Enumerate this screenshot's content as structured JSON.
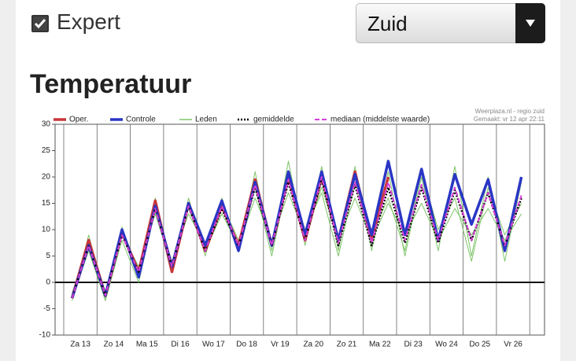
{
  "header": {
    "expert_label": "Expert",
    "expert_checked": true,
    "region": "Zuid"
  },
  "section_title": "Temperatuur",
  "chart_data": {
    "type": "line",
    "source": "Weerplaza.nl - regio zuid",
    "created": "Gemaakt: vr 12 apr 22:11",
    "categories": [
      "Za 13",
      null,
      "Zo 14",
      null,
      "Ma 15",
      null,
      "Di 16",
      null,
      "Wo 17",
      null,
      "Do 18",
      null,
      "Vr 19",
      null,
      "Za 20",
      null,
      "Zo 21",
      null,
      "Ma 22",
      null,
      "Di 23",
      null,
      "Wo 24",
      null,
      "Do 25",
      null,
      "Vr 26",
      null
    ],
    "ylim": [
      -10,
      30
    ],
    "yticks": [
      -10,
      -5,
      0,
      5,
      10,
      15,
      20,
      25,
      30
    ],
    "series": [
      {
        "name": "Oper.",
        "color": "#c9373a",
        "width": 3.5,
        "dash": "none",
        "values": [
          -3,
          8,
          -2.5,
          9.5,
          2,
          15.5,
          2,
          15,
          6,
          14.5,
          7,
          19.5,
          7,
          20,
          8,
          20,
          8,
          21,
          8,
          20,
          null,
          null,
          null,
          null,
          null,
          null,
          null,
          null
        ]
      },
      {
        "name": "Controle",
        "color": "#2a36c4",
        "width": 3.5,
        "dash": "none",
        "values": [
          -3,
          7,
          -2.5,
          10,
          1,
          14.5,
          3,
          15,
          7,
          15.5,
          6,
          19,
          7,
          21,
          9,
          21,
          8,
          20.5,
          9,
          23,
          9,
          21.5,
          8,
          20.5,
          11,
          19.5,
          6,
          20
        ]
      },
      {
        "name": "Leden",
        "color": "#7fc46a",
        "width": 1,
        "dash": "none",
        "members": [
          [
            -3.5,
            9,
            -3,
            10.5,
            1,
            16,
            2,
            16,
            5,
            16,
            6,
            21,
            6,
            23,
            7,
            22,
            6,
            22,
            6,
            21,
            5,
            20,
            6,
            22,
            5,
            20,
            4,
            19
          ],
          [
            -2,
            7,
            -2,
            9,
            3,
            13,
            3,
            14,
            6,
            13,
            7,
            16,
            8,
            17,
            9,
            18,
            8,
            16,
            8,
            15,
            9,
            15,
            8,
            14,
            9,
            14,
            8,
            13
          ],
          [
            -3,
            6,
            -3.5,
            8,
            0,
            14,
            4,
            13,
            7,
            15,
            8,
            18,
            5,
            20,
            10,
            17,
            5,
            19,
            9,
            16,
            6,
            21,
            10,
            16,
            4,
            18,
            9,
            15
          ]
        ]
      },
      {
        "name": "gemiddelde",
        "color": "#000000",
        "width": 2.5,
        "dash": "2 2",
        "values": [
          -3,
          7,
          -2.5,
          9,
          2,
          14,
          3,
          14.5,
          6,
          14,
          7,
          18,
          7,
          19,
          8,
          19.5,
          7,
          18.5,
          7,
          18,
          7.5,
          18,
          7.5,
          17.5,
          8,
          17,
          7,
          16
        ]
      },
      {
        "name": "mediaan (middelste waarde)",
        "color": "#d63fd6",
        "width": 2,
        "dash": "6 3",
        "values": [
          -3,
          7,
          -2.5,
          9,
          2,
          14,
          3,
          14.5,
          6,
          14.5,
          7,
          18.5,
          7,
          19.5,
          8,
          20,
          7.5,
          19,
          7.5,
          19,
          8,
          18.5,
          8,
          18,
          8,
          17,
          7,
          16.5
        ]
      }
    ]
  }
}
